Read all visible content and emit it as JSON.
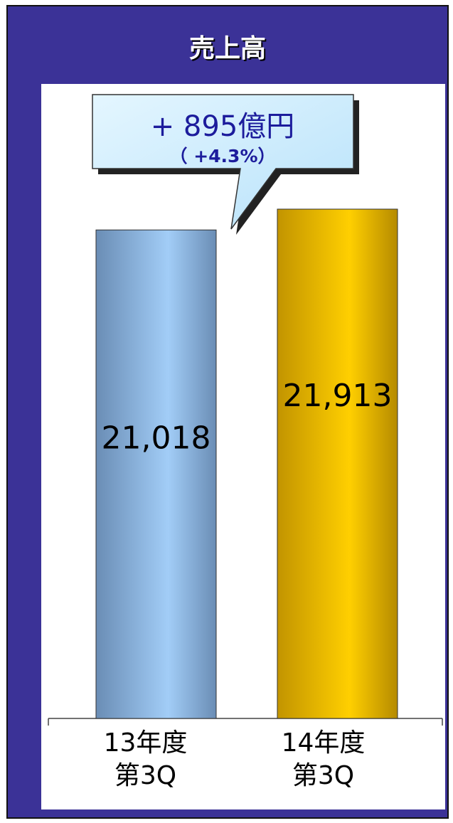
{
  "chart_data": {
    "type": "bar",
    "title": "売上高",
    "categories": [
      "13年度\n第3Q",
      "14年度\n第3Q"
    ],
    "values": [
      21018,
      21913
    ],
    "value_labels": [
      "21,018",
      "21,913"
    ],
    "colors": [
      "#8fb6e0",
      "#f2c200"
    ],
    "annotation": {
      "text": "+ 895億円",
      "subtext": "（ +4.3%）"
    }
  }
}
